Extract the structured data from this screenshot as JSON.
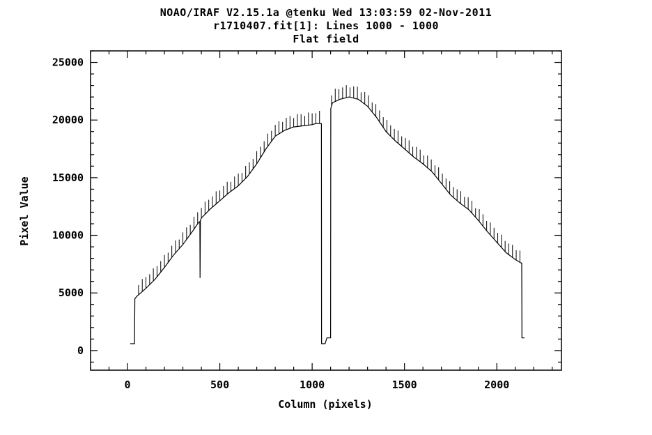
{
  "chart_data": {
    "type": "line",
    "title_lines": [
      "NOAO/IRAF V2.15.1a @tenku Wed 13:03:59 02-Nov-2011",
      "r1710407.fit[1]: Lines 1000 - 1000",
      "Flat field"
    ],
    "xlabel": "Column (pixels)",
    "ylabel": "Pixel Value",
    "xlim": [
      -200,
      2350
    ],
    "ylim": [
      -1700,
      26000
    ],
    "x_ticks": [
      0,
      500,
      1000,
      1500,
      2000
    ],
    "x_tick_labels": [
      "0",
      "500",
      "1000",
      "1500",
      "2000"
    ],
    "y_ticks": [
      0,
      5000,
      10000,
      15000,
      20000,
      25000
    ],
    "y_tick_labels": [
      "0",
      "5000",
      "10000",
      "15000",
      "20000",
      "25000"
    ],
    "x_minor_step": 100,
    "y_minor_step": 1000,
    "grid": false,
    "series": [
      {
        "x": [
          15,
          38,
          40,
          50,
          100,
          150,
          200,
          250,
          300,
          350,
          380,
          392,
          393,
          395,
          400,
          450,
          500,
          550,
          600,
          650,
          700,
          750,
          800,
          850,
          900,
          950,
          1000,
          1020,
          1050,
          1051,
          1070,
          1080,
          1100,
          1101,
          1110,
          1150,
          1200,
          1250,
          1300,
          1350,
          1400,
          1450,
          1500,
          1550,
          1600,
          1650,
          1700,
          1750,
          1800,
          1850,
          1900,
          1950,
          2000,
          2050,
          2100,
          2130,
          2135,
          2136,
          2140,
          2150
        ],
        "y": [
          600,
          600,
          4500,
          4700,
          5400,
          6200,
          7200,
          8300,
          9200,
          10300,
          11000,
          11200,
          6300,
          11300,
          11500,
          12300,
          13000,
          13700,
          14300,
          15100,
          16200,
          17500,
          18600,
          19100,
          19400,
          19500,
          19600,
          19700,
          19700,
          600,
          600,
          1100,
          1100,
          21000,
          21500,
          21800,
          22000,
          21800,
          21200,
          20200,
          19000,
          18200,
          17500,
          16800,
          16200,
          15500,
          14500,
          13500,
          12800,
          12200,
          11300,
          10300,
          9400,
          8500,
          7900,
          7600,
          7600,
          1100,
          1100,
          1100
        ],
        "spike_step": 20,
        "spike_height": 1100,
        "spike_ranges": [
          [
            60,
            1045
          ],
          [
            1105,
            2125
          ]
        ]
      }
    ],
    "colors": {
      "background": "#ffffff",
      "line": "#000000"
    }
  }
}
